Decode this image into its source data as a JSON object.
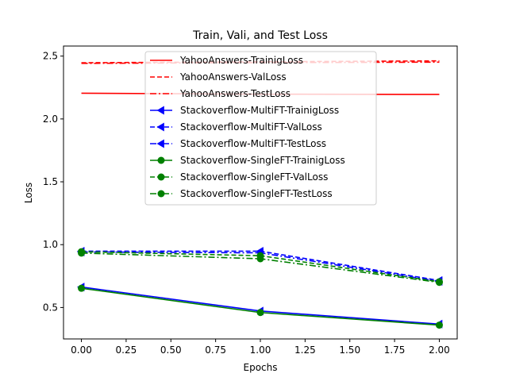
{
  "chart_data": {
    "type": "line",
    "title": "Train, Vali, and Test Loss",
    "xlabel": "Epochs",
    "ylabel": "Loss",
    "xlim": [
      -0.1,
      2.1
    ],
    "ylim": [
      0.25,
      2.58
    ],
    "xticks": [
      "0.00",
      "0.25",
      "0.50",
      "0.75",
      "1.00",
      "1.25",
      "1.50",
      "1.75",
      "2.00"
    ],
    "yticks": [
      "0.5",
      "1.0",
      "1.5",
      "2.0",
      "2.5"
    ],
    "legend_position": "upper-center",
    "grid": false,
    "x": [
      0,
      1,
      2
    ],
    "series": [
      {
        "name": "YahooAnswers-TrainigLoss",
        "color": "#ff0000",
        "linestyle": "solid",
        "marker": "none",
        "values": [
          2.205,
          2.197,
          2.195
        ]
      },
      {
        "name": "YahooAnswers-ValLoss",
        "color": "#ff0000",
        "linestyle": "dashed",
        "marker": "none",
        "values": [
          2.447,
          2.455,
          2.462
        ]
      },
      {
        "name": "YahooAnswers-TestLoss",
        "color": "#ff0000",
        "linestyle": "dashdot",
        "marker": "none",
        "values": [
          2.442,
          2.448,
          2.452
        ]
      },
      {
        "name": "Stackoverflow-MultiFT-TrainigLoss",
        "color": "#0000ff",
        "linestyle": "solid",
        "marker": "triangle-left",
        "values": [
          0.663,
          0.472,
          0.368
        ]
      },
      {
        "name": "Stackoverflow-MultiFT-ValLoss",
        "color": "#0000ff",
        "linestyle": "dashed",
        "marker": "triangle-left",
        "values": [
          0.948,
          0.948,
          0.715
        ]
      },
      {
        "name": "Stackoverflow-MultiFT-TestLoss",
        "color": "#0000ff",
        "linestyle": "dashdot",
        "marker": "triangle-left",
        "values": [
          0.942,
          0.935,
          0.708
        ]
      },
      {
        "name": "Stackoverflow-SingleFT-TrainigLoss",
        "color": "#008000",
        "linestyle": "solid",
        "marker": "circle",
        "values": [
          0.653,
          0.46,
          0.36
        ]
      },
      {
        "name": "Stackoverflow-SingleFT-ValLoss",
        "color": "#008000",
        "linestyle": "dashed",
        "marker": "circle",
        "values": [
          0.944,
          0.912,
          0.705
        ]
      },
      {
        "name": "Stackoverflow-SingleFT-TestLoss",
        "color": "#008000",
        "linestyle": "dashdot",
        "marker": "circle",
        "values": [
          0.933,
          0.888,
          0.7
        ]
      }
    ]
  }
}
